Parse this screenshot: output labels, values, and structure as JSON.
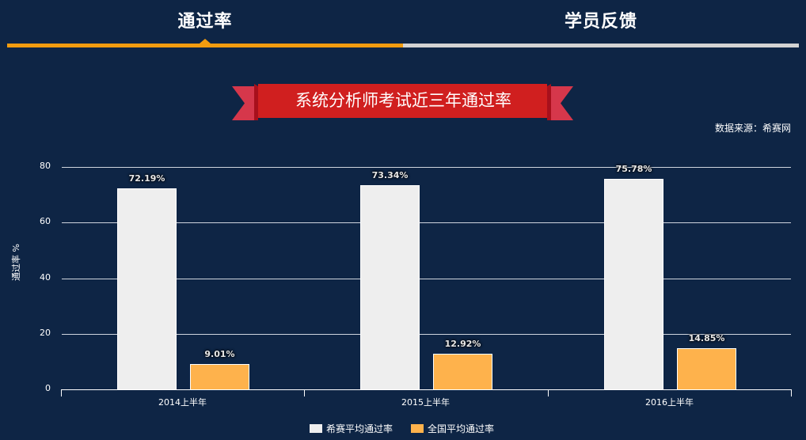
{
  "tabs": [
    {
      "label": "通过率",
      "active": true
    },
    {
      "label": "学员反馈",
      "active": false
    }
  ],
  "colors": {
    "background": "#0e2545",
    "tab_active": "#f29c0f",
    "tab_inactive": "#d3d3d3",
    "ribbon_main": "#d01f1f",
    "ribbon_tail": "#d6374b",
    "ribbon_fold": "#a8101c",
    "series_xisai": "#eeeeee",
    "series_national": "#feb24c"
  },
  "ribbon": {
    "title": "系统分析师考试近三年通过率"
  },
  "source": {
    "text": "数据来源：希赛网"
  },
  "chart_data": {
    "type": "bar",
    "title": "系统分析师考试近三年通过率",
    "xlabel": "",
    "ylabel": "通过率 %",
    "ylim": [
      0,
      80
    ],
    "yticks": [
      "0",
      "20",
      "40",
      "60",
      "80"
    ],
    "grid": true,
    "legend_position": "bottom",
    "categories": [
      "2014上半年",
      "2015上半年",
      "2016上半年"
    ],
    "series": [
      {
        "name": "希赛平均通过率",
        "color": "#eeeeee",
        "values": [
          72.19,
          73.34,
          75.78
        ],
        "labels": [
          "72.19%",
          "73.34%",
          "75.78%"
        ]
      },
      {
        "name": "全国平均通过率",
        "color": "#feb24c",
        "values": [
          9.01,
          12.92,
          14.85
        ],
        "labels": [
          "9.01%",
          "12.92%",
          "14.85%"
        ]
      }
    ]
  }
}
